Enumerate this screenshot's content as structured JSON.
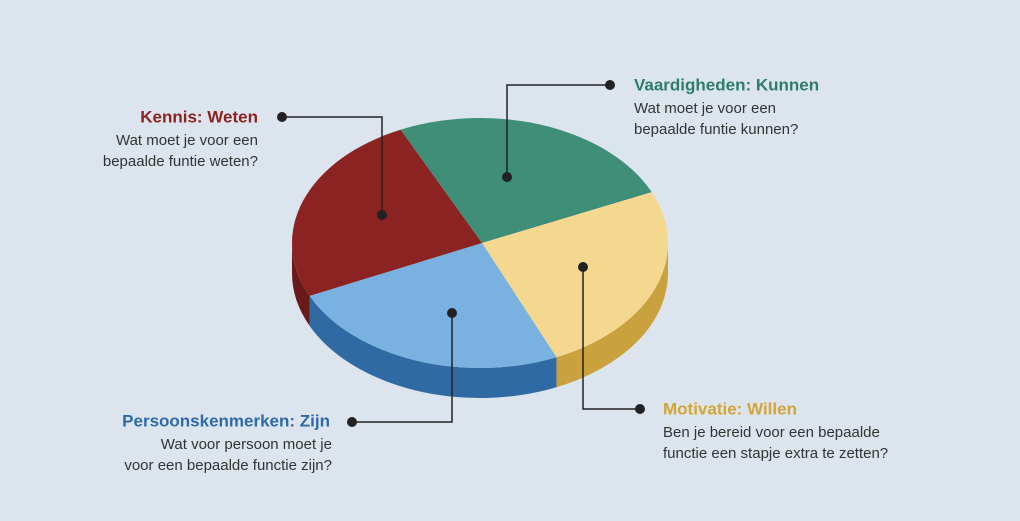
{
  "labels": [
    {
      "title": "Kennis: Weten",
      "lines": [
        "Wat moet je voor een",
        "bepaalde funtie weten?"
      ]
    },
    {
      "title": "Vaardigheden: Kunnen",
      "lines": [
        "Wat moet je voor een",
        "bepaalde funtie kunnen?"
      ]
    },
    {
      "title": "Motivatie: Willen",
      "lines": [
        "Ben je bereid voor een bepaalde",
        "functie een stapje extra te zetten?"
      ]
    },
    {
      "title": "Persoonskenmerken: Zijn",
      "lines": [
        "Wat voor persoon moet je",
        "voor een bepaalde functie zijn?"
      ]
    }
  ]
}
